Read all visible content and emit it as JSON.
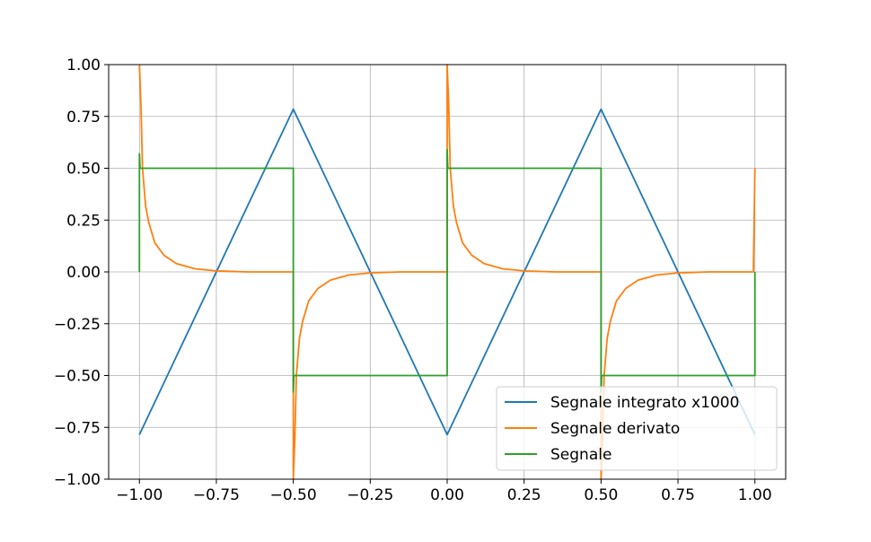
{
  "chart_data": {
    "type": "line",
    "title": "",
    "xlabel": "",
    "ylabel": "",
    "xlim": [
      -1.1,
      1.1
    ],
    "ylim": [
      -1.0,
      1.0
    ],
    "x_ticks": [
      -1.0,
      -0.75,
      -0.5,
      -0.25,
      0.0,
      0.25,
      0.5,
      0.75,
      1.0
    ],
    "x_tick_labels": [
      "−1.00",
      "−0.75",
      "−0.50",
      "−0.25",
      "0.00",
      "0.25",
      "0.50",
      "0.75",
      "1.00"
    ],
    "y_ticks": [
      -1.0,
      -0.75,
      -0.5,
      -0.25,
      0.0,
      0.25,
      0.5,
      0.75,
      1.0
    ],
    "y_tick_labels": [
      "−1.00",
      "−0.75",
      "−0.50",
      "−0.25",
      "0.00",
      "0.25",
      "0.50",
      "0.75",
      "1.00"
    ],
    "grid": true,
    "legend_position": "bottom-right",
    "series": [
      {
        "name": "Segnale integrato x1000",
        "color": "#1f77b4",
        "x": [
          -1.0,
          -0.5,
          0.0,
          0.5,
          1.0
        ],
        "y": [
          -0.785,
          0.785,
          -0.785,
          0.785,
          -0.785
        ]
      },
      {
        "name": "Segnale derivato",
        "color": "#ff7f0e",
        "x": [
          -1.0,
          -0.995,
          -0.99,
          -0.98,
          -0.97,
          -0.95,
          -0.92,
          -0.88,
          -0.82,
          -0.75,
          -0.65,
          -0.5,
          -0.5,
          -0.495,
          -0.49,
          -0.48,
          -0.47,
          -0.45,
          -0.42,
          -0.38,
          -0.32,
          -0.25,
          -0.15,
          0.0,
          0.0,
          0.005,
          0.01,
          0.02,
          0.03,
          0.05,
          0.08,
          0.12,
          0.18,
          0.25,
          0.35,
          0.5,
          0.5,
          0.505,
          0.51,
          0.52,
          0.53,
          0.55,
          0.58,
          0.62,
          0.68,
          0.75,
          0.85,
          0.995,
          1.0
        ],
        "y": [
          1.0,
          0.8,
          0.5,
          0.32,
          0.24,
          0.14,
          0.08,
          0.04,
          0.015,
          0.005,
          0.0,
          0.0,
          -1.0,
          -0.8,
          -0.5,
          -0.32,
          -0.24,
          -0.14,
          -0.08,
          -0.04,
          -0.015,
          -0.005,
          0.0,
          0.0,
          1.0,
          0.8,
          0.5,
          0.32,
          0.24,
          0.14,
          0.08,
          0.04,
          0.015,
          0.005,
          0.0,
          0.0,
          -1.0,
          -0.8,
          -0.5,
          -0.32,
          -0.24,
          -0.14,
          -0.08,
          -0.04,
          -0.015,
          -0.005,
          0.0,
          0.0,
          0.5
        ]
      },
      {
        "name": "Segnale",
        "color": "#2ca02c",
        "x": [
          -1.0,
          -1.0,
          -0.998,
          -0.5,
          -0.5,
          -0.498,
          0.0,
          0.0,
          0.002,
          0.5,
          0.5,
          0.502,
          1.0,
          1.0
        ],
        "y": [
          0.0,
          0.57,
          0.5,
          0.5,
          -0.58,
          -0.5,
          -0.5,
          0.59,
          0.5,
          0.5,
          -0.58,
          -0.5,
          -0.5,
          0.0
        ]
      }
    ]
  }
}
